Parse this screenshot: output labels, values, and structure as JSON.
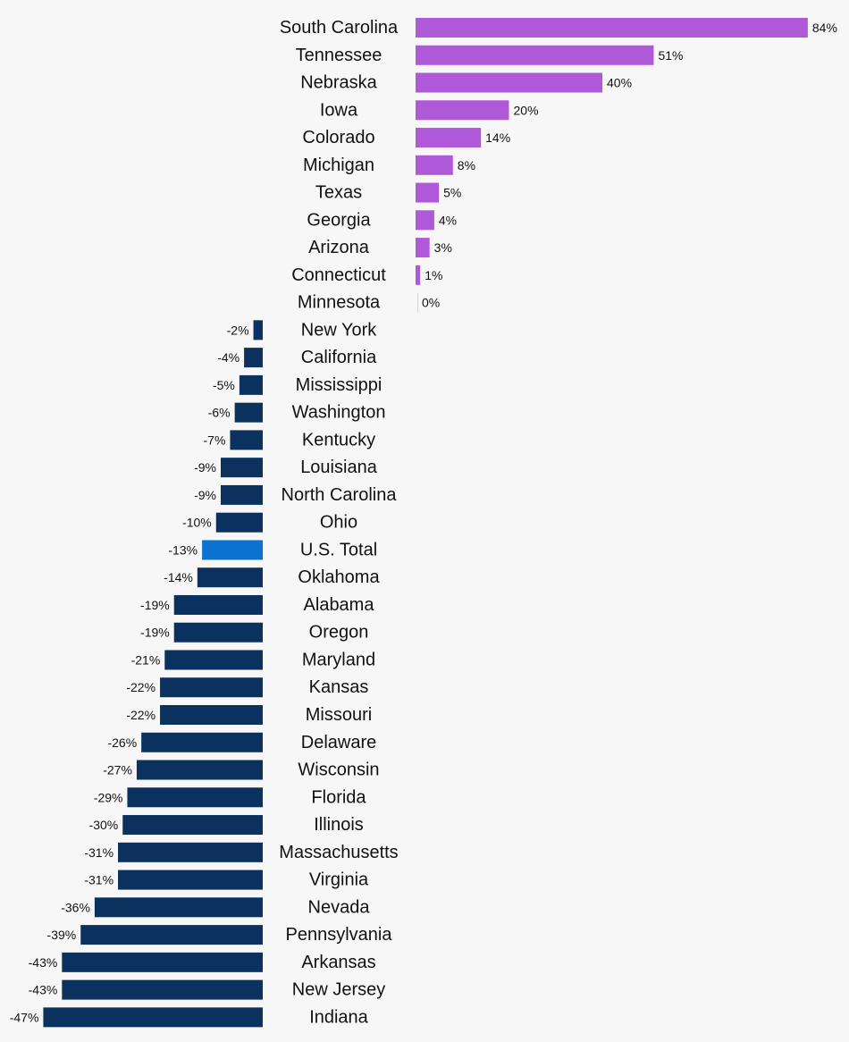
{
  "chart_data": {
    "type": "bar",
    "orientation": "horizontal",
    "title": "",
    "xlabel": "",
    "ylabel": "",
    "value_suffix": "%",
    "categories": [
      "South Carolina",
      "Tennessee",
      "Nebraska",
      "Iowa",
      "Colorado",
      "Michigan",
      "Texas",
      "Georgia",
      "Arizona",
      "Connecticut",
      "Minnesota",
      "New York",
      "California",
      "Mississippi",
      "Washington",
      "Kentucky",
      "Louisiana",
      "North Carolina",
      "Ohio",
      "U.S. Total",
      "Oklahoma",
      "Alabama",
      "Oregon",
      "Maryland",
      "Kansas",
      "Missouri",
      "Delaware",
      "Wisconsin",
      "Florida",
      "Illinois",
      "Massachusetts",
      "Virginia",
      "Nevada",
      "Pennsylvania",
      "Arkansas",
      "New Jersey",
      "Indiana"
    ],
    "values": [
      84,
      51,
      40,
      20,
      14,
      8,
      5,
      4,
      3,
      1,
      0,
      -2,
      -4,
      -5,
      -6,
      -7,
      -9,
      -9,
      -10,
      -13,
      -14,
      -19,
      -19,
      -21,
      -22,
      -22,
      -26,
      -27,
      -29,
      -30,
      -31,
      -31,
      -36,
      -39,
      -43,
      -43,
      -47
    ],
    "highlight": "U.S. Total",
    "colors": {
      "positive": "#b059d8",
      "negative": "#0b325e",
      "highlight": "#0a72d0",
      "zero": "#d8d0e8"
    },
    "grid": false
  }
}
